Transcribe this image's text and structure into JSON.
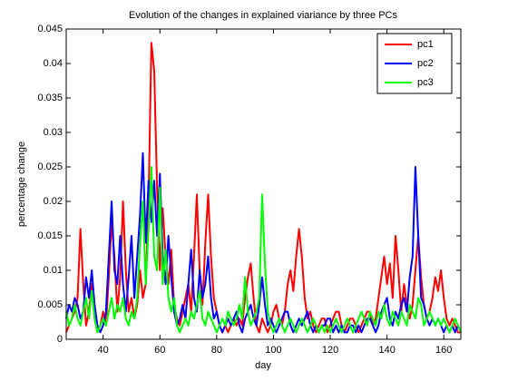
{
  "chart_data": {
    "type": "line",
    "title": "Evolution of the changes in explained viariance by three PCs",
    "xlabel": "day",
    "ylabel": "percentage change",
    "xlim": [
      27,
      166
    ],
    "ylim": [
      0,
      0.045
    ],
    "xticks": [
      40,
      60,
      80,
      100,
      120,
      140,
      160
    ],
    "yticks": [
      0,
      0.005,
      0.01,
      0.015,
      0.02,
      0.025,
      0.03,
      0.035,
      0.04,
      0.045
    ],
    "legend": "upper right",
    "x": [
      27,
      28,
      29,
      30,
      31,
      32,
      33,
      34,
      35,
      36,
      37,
      38,
      39,
      40,
      41,
      42,
      43,
      44,
      45,
      46,
      47,
      48,
      49,
      50,
      51,
      52,
      53,
      54,
      55,
      56,
      57,
      58,
      59,
      60,
      61,
      62,
      63,
      64,
      65,
      66,
      67,
      68,
      69,
      70,
      71,
      72,
      73,
      74,
      75,
      76,
      77,
      78,
      79,
      80,
      81,
      82,
      83,
      84,
      85,
      86,
      87,
      88,
      89,
      90,
      91,
      92,
      93,
      94,
      95,
      96,
      97,
      98,
      99,
      100,
      101,
      102,
      103,
      104,
      105,
      106,
      107,
      108,
      109,
      110,
      111,
      112,
      113,
      114,
      115,
      116,
      117,
      118,
      119,
      120,
      121,
      122,
      123,
      124,
      125,
      126,
      127,
      128,
      129,
      130,
      131,
      132,
      133,
      134,
      135,
      136,
      137,
      138,
      139,
      140,
      141,
      142,
      143,
      144,
      145,
      146,
      147,
      148,
      149,
      150,
      151,
      152,
      153,
      154,
      155,
      156,
      157,
      158,
      159,
      160,
      161,
      162,
      163,
      164,
      165,
      166
    ],
    "series": [
      {
        "name": "pc1",
        "color": "#ff0000",
        "values": [
          0.001,
          0.002,
          0.003,
          0.004,
          0.006,
          0.016,
          0.008,
          0.002,
          0.004,
          0.008,
          0.003,
          0.001,
          0.002,
          0.004,
          0.002,
          0.009,
          0.017,
          0.012,
          0.004,
          0.009,
          0.02,
          0.01,
          0.004,
          0.006,
          0.003,
          0.005,
          0.01,
          0.006,
          0.008,
          0.02,
          0.043,
          0.039,
          0.022,
          0.01,
          0.019,
          0.012,
          0.008,
          0.013,
          0.005,
          0.003,
          0.002,
          0.004,
          0.006,
          0.008,
          0.004,
          0.012,
          0.021,
          0.01,
          0.005,
          0.014,
          0.021,
          0.012,
          0.006,
          0.004,
          0.002,
          0.001,
          0.002,
          0.001,
          0.002,
          0.003,
          0.002,
          0.003,
          0.002,
          0.006,
          0.009,
          0.011,
          0.006,
          0.002,
          0.001,
          0.003,
          0.002,
          0.001,
          0.002,
          0.004,
          0.005,
          0.003,
          0.002,
          0.004,
          0.008,
          0.01,
          0.007,
          0.012,
          0.016,
          0.012,
          0.006,
          0.003,
          0.004,
          0.002,
          0.001,
          0.002,
          0.003,
          0.003,
          0.001,
          0.002,
          0.003,
          0.004,
          0.004,
          0.002,
          0.001,
          0.002,
          0.003,
          0.003,
          0.002,
          0.001,
          0.002,
          0.003,
          0.004,
          0.004,
          0.002,
          0.003,
          0.006,
          0.009,
          0.012,
          0.008,
          0.011,
          0.006,
          0.015,
          0.01,
          0.004,
          0.008,
          0.005,
          0.003,
          0.005,
          0.01,
          0.015,
          0.009,
          0.005,
          0.003,
          0.004,
          0.006,
          0.009,
          0.007,
          0.01,
          0.006,
          0.003,
          0.002,
          0.003,
          0.002,
          0.001,
          0.001
        ]
      },
      {
        "name": "pc2",
        "color": "#0000ff",
        "values": [
          0.003,
          0.005,
          0.004,
          0.006,
          0.005,
          0.003,
          0.004,
          0.009,
          0.006,
          0.01,
          0.005,
          0.002,
          0.001,
          0.002,
          0.004,
          0.012,
          0.02,
          0.01,
          0.008,
          0.015,
          0.008,
          0.004,
          0.009,
          0.015,
          0.006,
          0.012,
          0.018,
          0.027,
          0.014,
          0.023,
          0.017,
          0.023,
          0.015,
          0.024,
          0.012,
          0.008,
          0.015,
          0.009,
          0.004,
          0.002,
          0.003,
          0.005,
          0.003,
          0.008,
          0.013,
          0.006,
          0.004,
          0.01,
          0.006,
          0.008,
          0.012,
          0.006,
          0.003,
          0.004,
          0.002,
          0.001,
          0.002,
          0.003,
          0.002,
          0.003,
          0.004,
          0.002,
          0.001,
          0.003,
          0.004,
          0.005,
          0.003,
          0.002,
          0.005,
          0.009,
          0.005,
          0.002,
          0.003,
          0.002,
          0.001,
          0.002,
          0.003,
          0.004,
          0.004,
          0.002,
          0.001,
          0.002,
          0.003,
          0.002,
          0.003,
          0.004,
          0.002,
          0.001,
          0.002,
          0.001,
          0.002,
          0.002,
          0.003,
          0.003,
          0.001,
          0.002,
          0.001,
          0.002,
          0.001,
          0.001,
          0.002,
          0.002,
          0.001,
          0.002,
          0.001,
          0.002,
          0.003,
          0.003,
          0.002,
          0.001,
          0.002,
          0.004,
          0.005,
          0.006,
          0.003,
          0.002,
          0.004,
          0.003,
          0.005,
          0.006,
          0.004,
          0.009,
          0.012,
          0.025,
          0.015,
          0.006,
          0.005,
          0.003,
          0.002,
          0.003,
          0.002,
          0.003,
          0.002,
          0.001,
          0.002,
          0.001,
          0.002,
          0.001,
          0.002,
          0.001
        ]
      },
      {
        "name": "pc3",
        "color": "#00ff00",
        "values": [
          0.004,
          0.002,
          0.003,
          0.005,
          0.003,
          0.002,
          0.004,
          0.006,
          0.003,
          0.007,
          0.003,
          0.001,
          0.002,
          0.003,
          0.002,
          0.004,
          0.006,
          0.003,
          0.005,
          0.004,
          0.006,
          0.003,
          0.002,
          0.004,
          0.003,
          0.006,
          0.014,
          0.02,
          0.008,
          0.016,
          0.025,
          0.012,
          0.01,
          0.022,
          0.008,
          0.013,
          0.006,
          0.004,
          0.006,
          0.002,
          0.001,
          0.002,
          0.003,
          0.002,
          0.004,
          0.003,
          0.005,
          0.007,
          0.003,
          0.002,
          0.004,
          0.003,
          0.002,
          0.001,
          0.002,
          0.003,
          0.002,
          0.004,
          0.003,
          0.002,
          0.003,
          0.005,
          0.003,
          0.009,
          0.004,
          0.002,
          0.003,
          0.004,
          0.006,
          0.021,
          0.011,
          0.004,
          0.002,
          0.001,
          0.002,
          0.003,
          0.002,
          0.001,
          0.002,
          0.003,
          0.002,
          0.001,
          0.002,
          0.003,
          0.002,
          0.001,
          0.002,
          0.003,
          0.002,
          0.001,
          0.002,
          0.001,
          0.002,
          0.001,
          0.002,
          0.003,
          0.002,
          0.001,
          0.002,
          0.003,
          0.002,
          0.001,
          0.002,
          0.003,
          0.004,
          0.003,
          0.002,
          0.004,
          0.003,
          0.002,
          0.004,
          0.003,
          0.005,
          0.003,
          0.002,
          0.004,
          0.003,
          0.002,
          0.004,
          0.003,
          0.002,
          0.005,
          0.004,
          0.003,
          0.006,
          0.005,
          0.002,
          0.003,
          0.004,
          0.003,
          0.002,
          0.003,
          0.002,
          0.003,
          0.002,
          0.001,
          0.002,
          0.003,
          0.002,
          0.001
        ]
      }
    ]
  }
}
